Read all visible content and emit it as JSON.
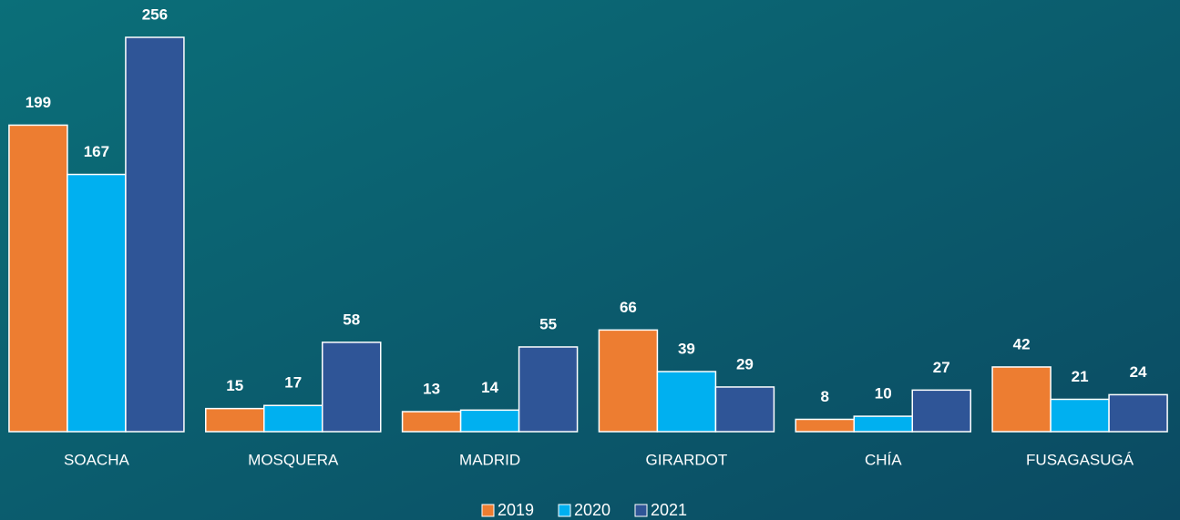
{
  "chart_data": {
    "type": "bar",
    "categories": [
      "SOACHA",
      "MOSQUERA",
      "MADRID",
      "GIRARDOT",
      "CHÍA",
      "FUSAGASUGÁ"
    ],
    "series": [
      {
        "name": "2019",
        "color": "#ed7d31",
        "values": [
          199,
          15,
          13,
          66,
          8,
          42
        ]
      },
      {
        "name": "2020",
        "color": "#00b0f0",
        "values": [
          167,
          17,
          14,
          39,
          10,
          21
        ]
      },
      {
        "name": "2021",
        "color": "#2f5597",
        "values": [
          256,
          58,
          55,
          29,
          27,
          24
        ]
      }
    ],
    "legend": "bottom"
  }
}
